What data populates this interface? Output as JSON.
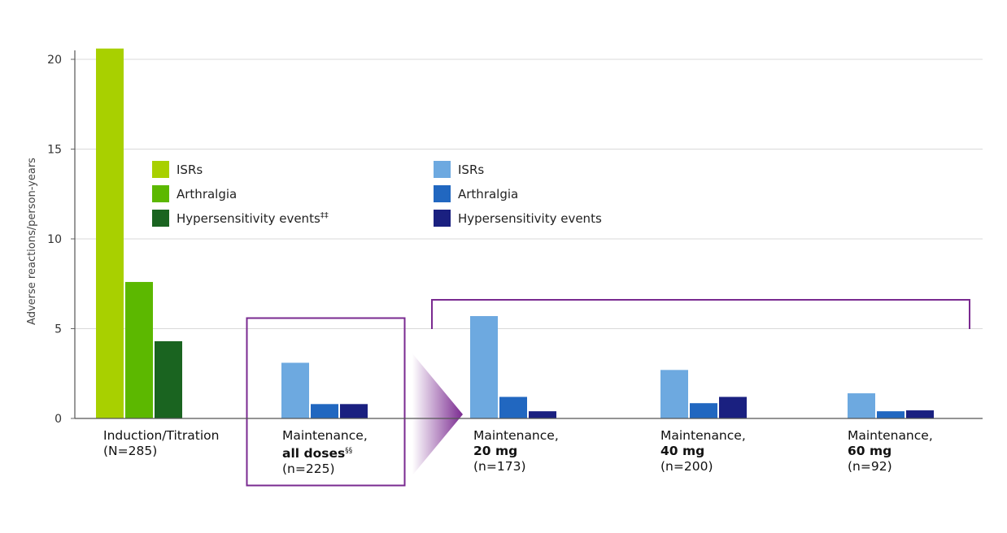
{
  "chart_data": {
    "type": "bar",
    "ylabel": "Adverse reactions/person-years",
    "ylim": [
      0,
      21
    ],
    "yticks": [
      0,
      5,
      10,
      15,
      20
    ],
    "grid": true,
    "categories": [
      {
        "line1": "Induction/Titration",
        "bold": "",
        "sup": "",
        "line2": "(N=285)"
      },
      {
        "line1": "Maintenance,",
        "bold": "all doses",
        "sup": "§§",
        "line2": "(n=225)"
      },
      {
        "line1": "Maintenance,",
        "bold": "20 mg",
        "sup": "",
        "line2": "(n=173)"
      },
      {
        "line1": "Maintenance,",
        "bold": "40 mg",
        "sup": "",
        "line2": "(n=200)"
      },
      {
        "line1": "Maintenance,",
        "bold": "60 mg",
        "sup": "",
        "line2": "(n=92)"
      }
    ],
    "series": [
      {
        "name": "ISRs",
        "group": "induction",
        "color": "#a8d000",
        "values": [
          20.6,
          null,
          null,
          null,
          null
        ]
      },
      {
        "name": "Arthralgia",
        "group": "induction",
        "color": "#5cb800",
        "values": [
          7.6,
          null,
          null,
          null,
          null
        ]
      },
      {
        "name": "Hypersensitivity events",
        "sup": "‡‡",
        "group": "induction",
        "color": "#1a6420",
        "values": [
          4.3,
          null,
          null,
          null,
          null
        ]
      },
      {
        "name": "ISRs",
        "group": "maintenance",
        "color": "#6da9e0",
        "values": [
          null,
          3.1,
          5.7,
          2.7,
          1.4
        ]
      },
      {
        "name": "Arthralgia",
        "group": "maintenance",
        "color": "#2167c0",
        "values": [
          null,
          0.8,
          1.2,
          0.85,
          0.4
        ]
      },
      {
        "name": "Hypersensitivity events",
        "sup": "",
        "group": "maintenance",
        "color": "#1a2080",
        "values": [
          null,
          0.8,
          0.4,
          1.2,
          0.45
        ]
      }
    ],
    "legend_placement": "top-left",
    "highlight_color": "#7a2a90"
  }
}
